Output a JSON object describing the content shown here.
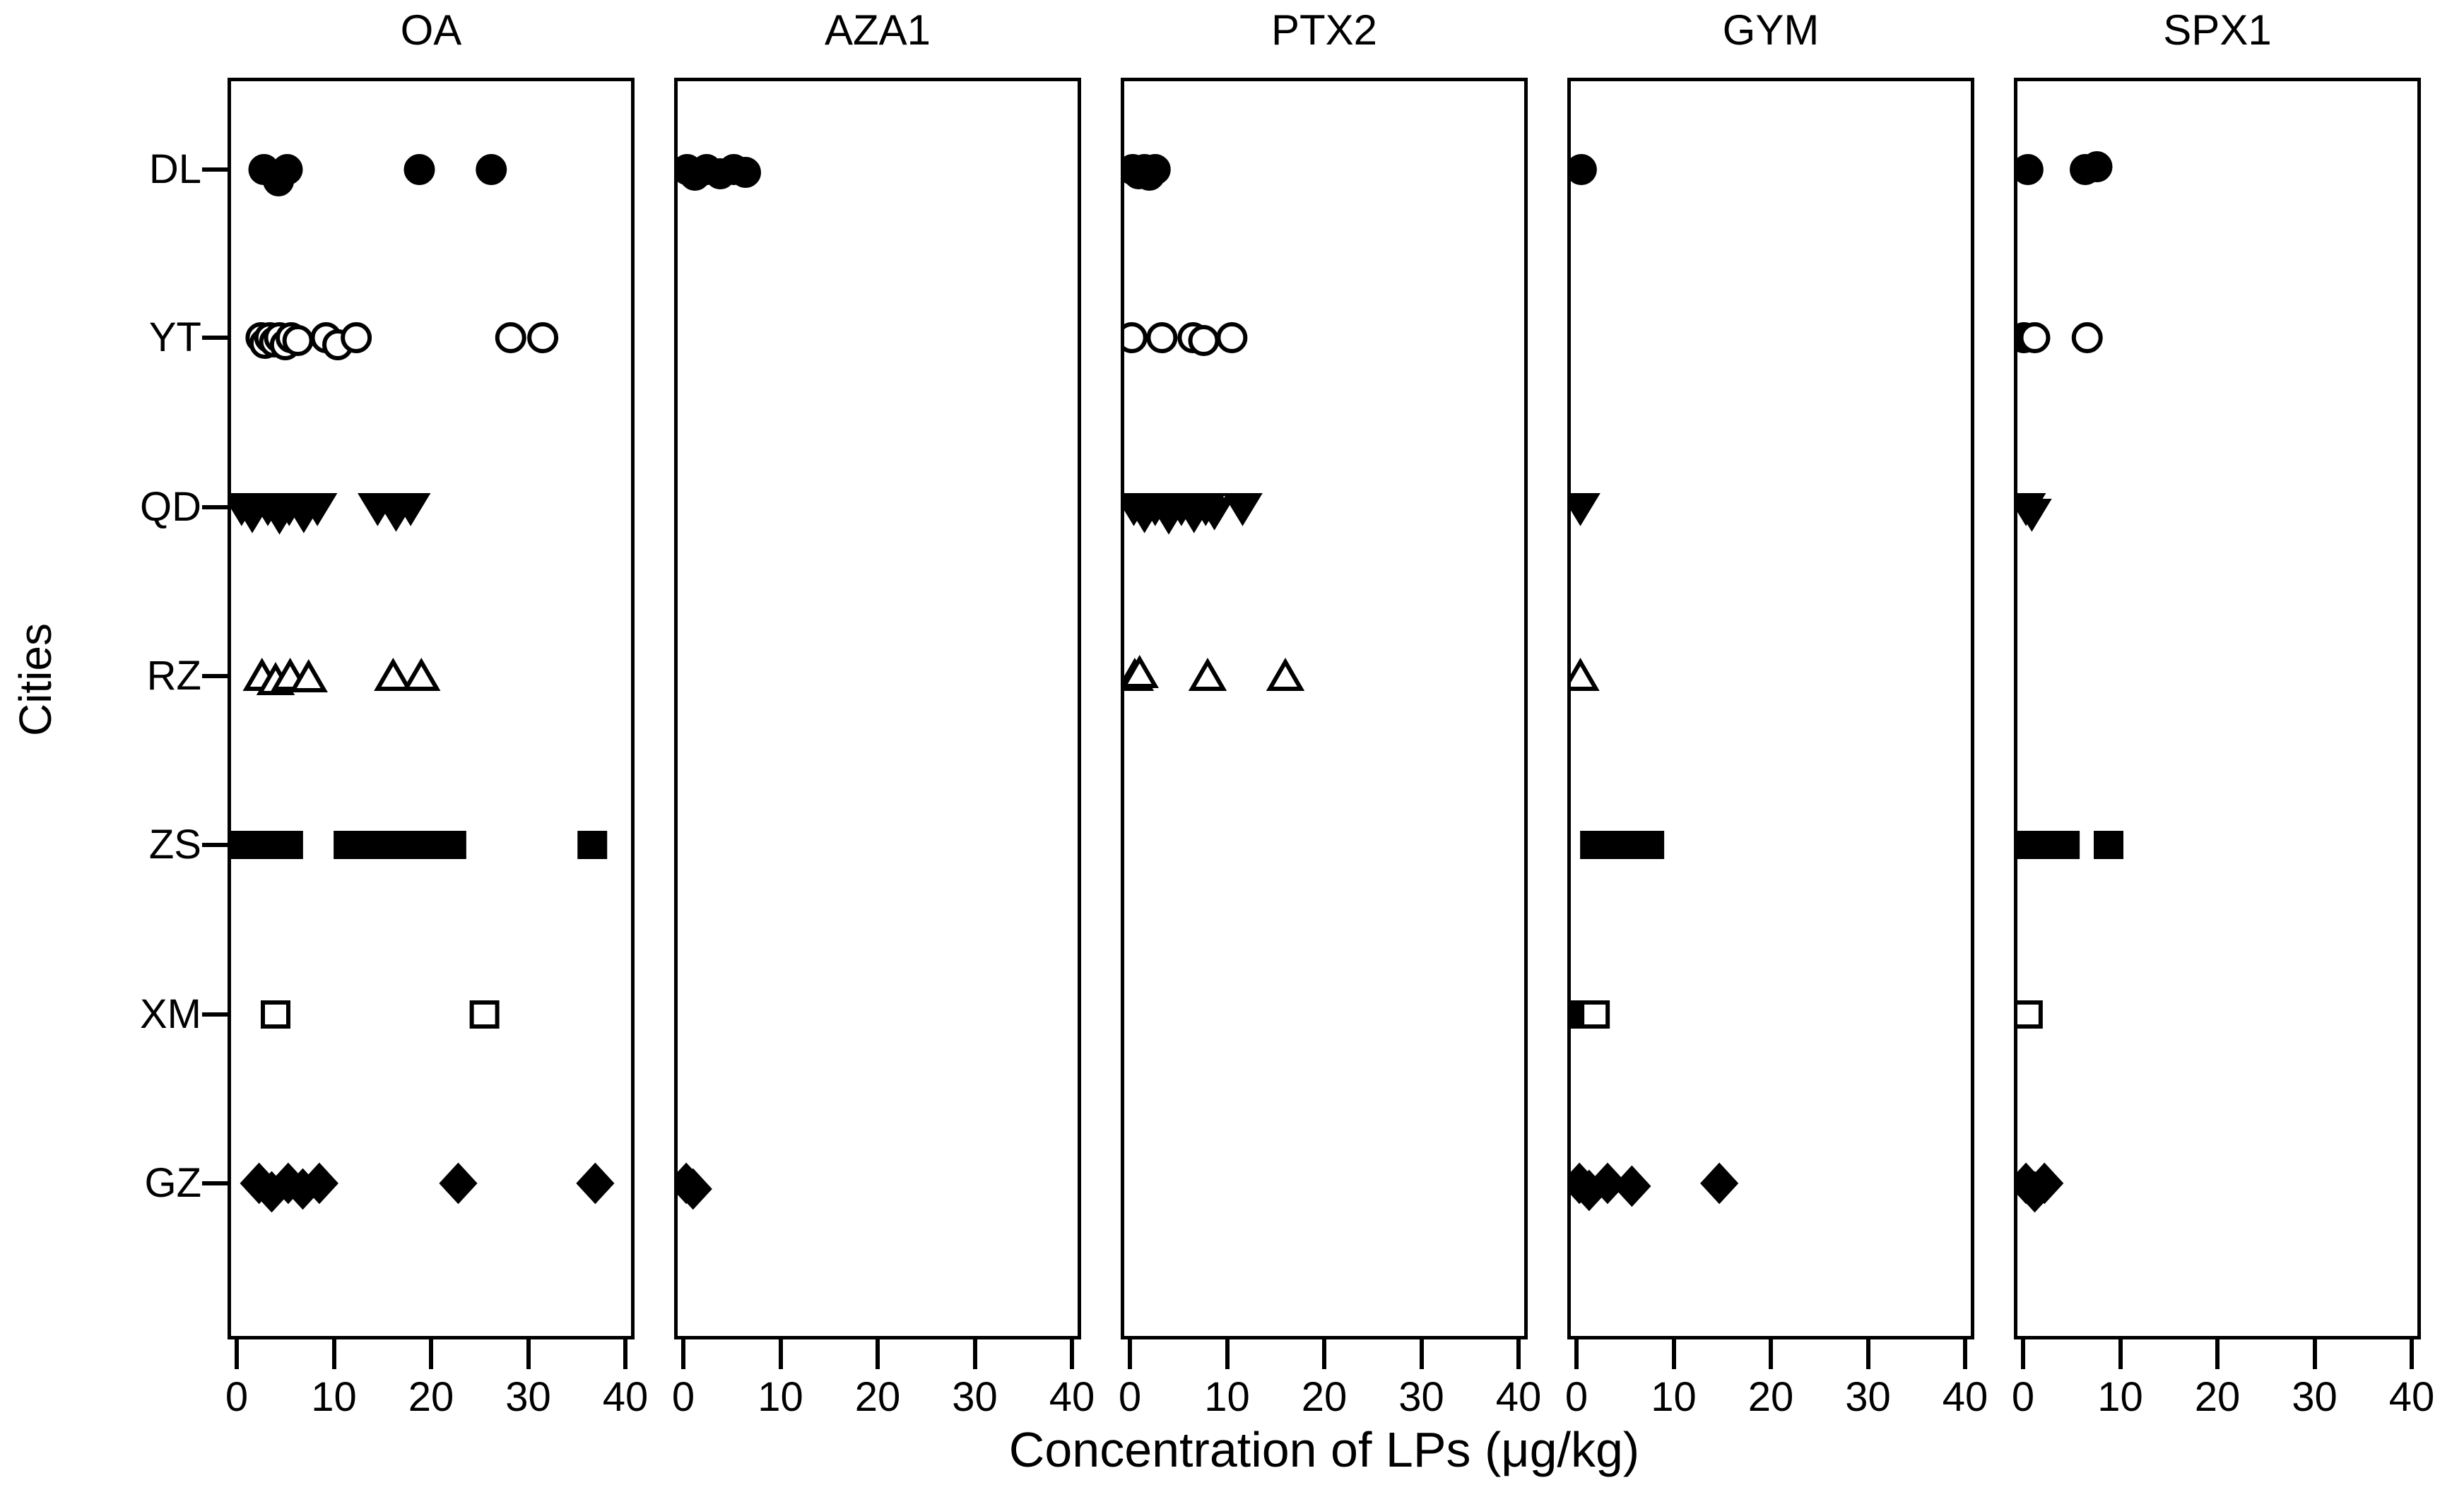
{
  "figure": {
    "background": "#ffffff",
    "foreground": "#000000"
  },
  "chart_data": {
    "type": "scatter",
    "layout": "five horizontal panels, shared categorical y axis, legend off, grid off",
    "title": "",
    "xlabel": "Concentration of LPs (μg/kg)",
    "ylabel": "Cities",
    "xlim": [
      0,
      40
    ],
    "x_ticks": [
      0,
      10,
      20,
      30,
      40
    ],
    "cities": [
      "DL",
      "YT",
      "QD",
      "RZ",
      "ZS",
      "XM",
      "GZ"
    ],
    "markers": {
      "DL": {
        "shape": "circle",
        "fill": true,
        "name": "filled-circle"
      },
      "YT": {
        "shape": "circle",
        "fill": false,
        "name": "open-circle"
      },
      "QD": {
        "shape": "triangle-down",
        "fill": true,
        "name": "filled-triangle-down"
      },
      "RZ": {
        "shape": "triangle-up",
        "fill": false,
        "name": "open-triangle-up"
      },
      "ZS": {
        "shape": "square",
        "fill": true,
        "name": "filled-square"
      },
      "XM": {
        "shape": "square",
        "fill": false,
        "name": "open-square"
      },
      "GZ": {
        "shape": "diamond",
        "fill": true,
        "name": "filled-diamond"
      }
    },
    "panels": [
      {
        "title": "OA",
        "points": {
          "DL": [
            2.8,
            {
              "v": 4.3,
              "dy": 16
            },
            5.2,
            18.8,
            26.2
          ],
          "YT": [
            2.5,
            {
              "v": 2.9,
              "dy": 8
            },
            3.4,
            {
              "v": 3.9,
              "dy": 6
            },
            4.4,
            {
              "v": 5.0,
              "dy": 10
            },
            5.6,
            {
              "v": 6.3,
              "dy": 4
            },
            9.2,
            {
              "v": 10.4,
              "dy": 10
            },
            12.3,
            28.2,
            31.5
          ],
          "QD": [
            0.5,
            {
              "v": 1.6,
              "dy": 10
            },
            3.2,
            {
              "v": 4.4,
              "dy": 12
            },
            5.4,
            {
              "v": 6.9,
              "dy": 10
            },
            8.3,
            14.5,
            {
              "v": 16.4,
              "dy": 8
            },
            17.9
          ],
          "RZ": [
            2.6,
            {
              "v": 4.0,
              "dy": 6
            },
            5.5,
            {
              "v": 7.4,
              "dy": 2
            },
            16.1,
            19.0
          ],
          "ZS": [
            0.6,
            1.5,
            2.4,
            3.3,
            4.3,
            5.3,
            11.5,
            12.4,
            13.3,
            14.3,
            15.3,
            16.3,
            18.2,
            19.1,
            20.1,
            21.1,
            22.1,
            36.6
          ],
          "XM": [
            4.0,
            25.5
          ],
          "GZ": [
            2.3,
            {
              "v": 3.6,
              "dy": 12
            },
            5.3,
            {
              "v": 6.8,
              "dy": 8
            },
            8.5,
            22.8,
            36.9
          ]
        }
      },
      {
        "title": "AZA1",
        "points": {
          "DL": [
            0.4,
            {
              "v": 1.2,
              "dy": 8
            },
            2.4,
            {
              "v": 3.8,
              "dy": 6
            },
            5.2,
            {
              "v": 6.4,
              "dy": 4
            }
          ],
          "GZ": [
            0.3,
            {
              "v": 1.0,
              "dy": 8
            }
          ]
        }
      },
      {
        "title": "PTX2",
        "points": {
          "DL": [
            0.3,
            {
              "v": 0.9,
              "dy": 6
            },
            1.5,
            {
              "v": 2.0,
              "dy": 8
            },
            2.6
          ],
          "YT": [
            0.2,
            3.3,
            6.5,
            {
              "v": 7.6,
              "dy": 4
            },
            10.5
          ],
          "QD": [
            0.4,
            {
              "v": 1.5,
              "dy": 10
            },
            2.6,
            {
              "v": 4.0,
              "dy": 12
            },
            5.3,
            {
              "v": 6.6,
              "dy": 10
            },
            7.8,
            {
              "v": 8.7,
              "dy": 6
            },
            11.6
          ],
          "RZ": [
            0.5,
            {
              "v": 1.0,
              "dy": -4
            },
            8.0,
            16.0
          ]
        }
      },
      {
        "title": "GYM",
        "points": {
          "DL": [
            0.5
          ],
          "QD": [
            0.4
          ],
          "RZ": [
            0.4
          ],
          "ZS": [
            1.9,
            2.8,
            3.7,
            4.7,
            5.6,
            6.6,
            7.5
          ],
          "XM": [
            {
              "v": 0.3,
              "fill": true
            },
            1.9
          ],
          "GZ": [
            0.3,
            {
              "v": 1.3,
              "dy": 10
            },
            3.2,
            {
              "v": 5.7,
              "dy": 4
            },
            14.7
          ]
        }
      },
      {
        "title": "SPX1",
        "points": {
          "DL": [
            0.5,
            6.4,
            {
              "v": 7.6,
              "dy": -4
            }
          ],
          "YT": [
            {
              "v": 0.1,
              "fill": true
            },
            1.2,
            6.6
          ],
          "QD": [
            0.3,
            {
              "v": 0.9,
              "dy": 8
            }
          ],
          "ZS": [
            0.5,
            1.4,
            2.3,
            3.3,
            4.3,
            8.8
          ],
          "XM": [
            0.5
          ],
          "GZ": [
            0.3,
            {
              "v": 1.2,
              "dy": 12
            },
            2.2
          ]
        }
      }
    ]
  }
}
